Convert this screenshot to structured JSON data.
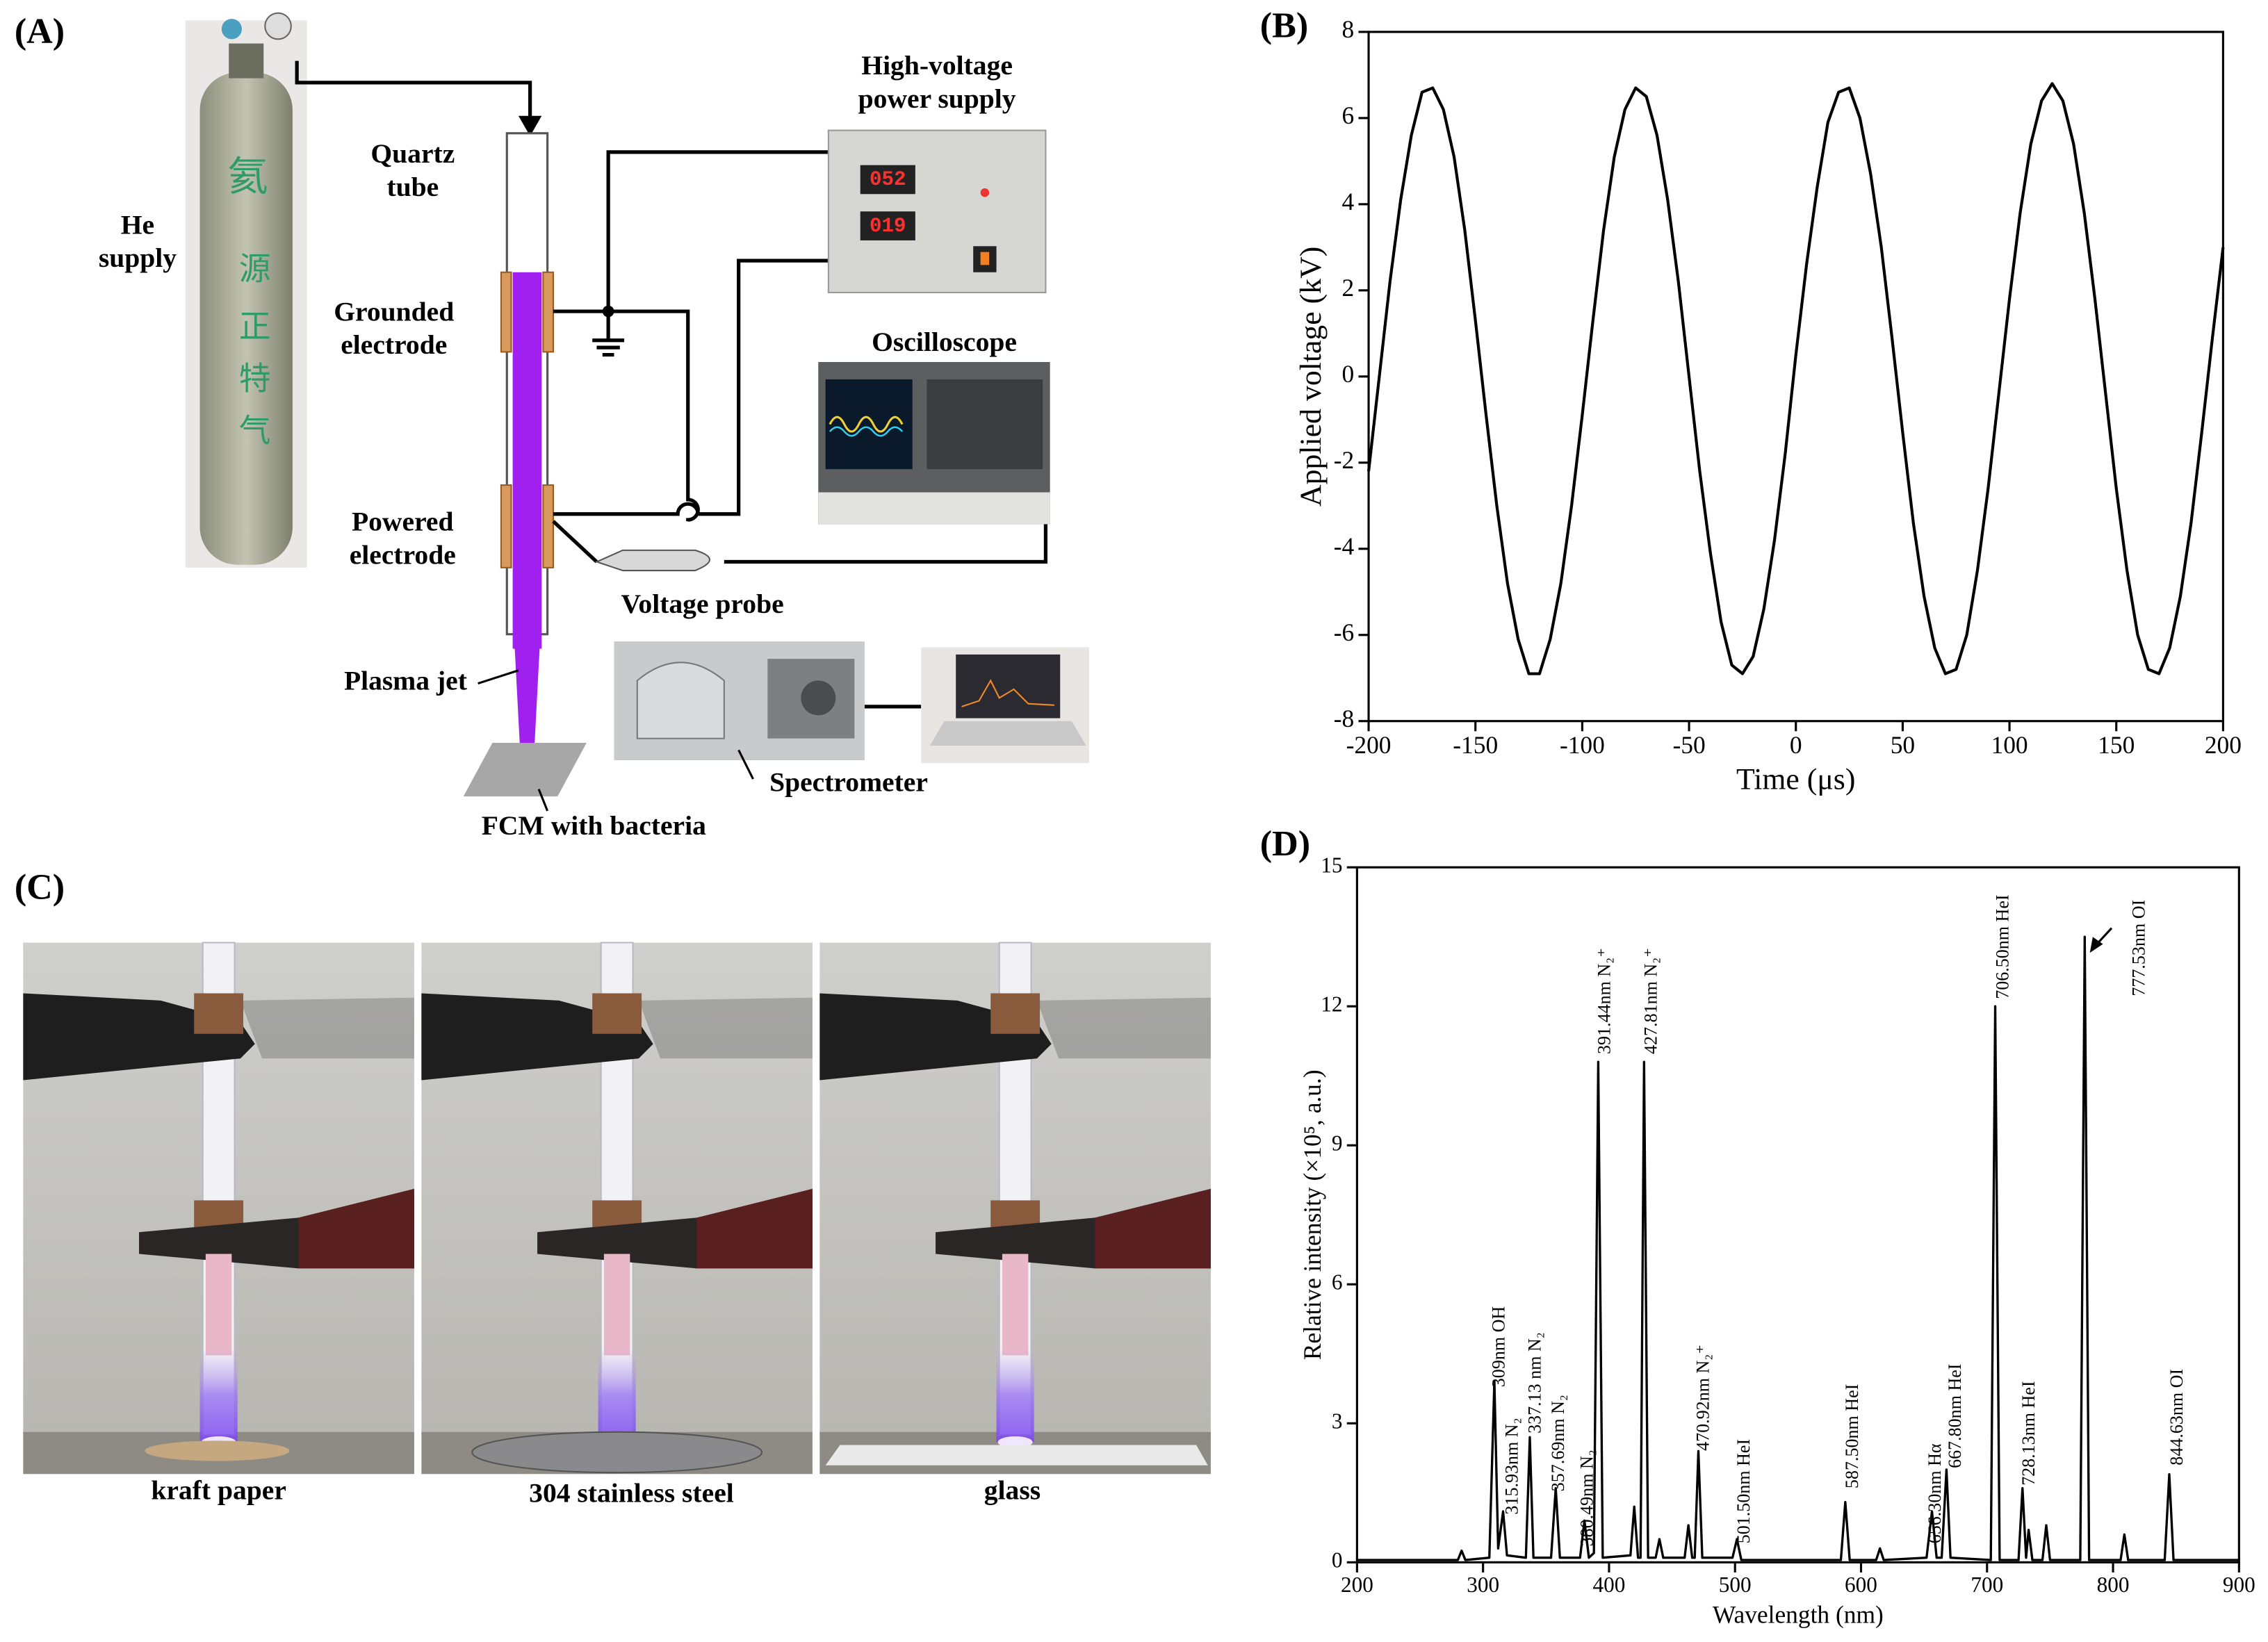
{
  "panel_a": {
    "label": "(A)",
    "he_supply": [
      "He",
      "supply"
    ],
    "cylinder_text": [
      "氦",
      "源",
      "正",
      "特",
      "气"
    ],
    "quartz_tube": [
      "Quartz",
      "tube"
    ],
    "grounded_electrode": [
      "Grounded",
      "electrode"
    ],
    "powered_electrode": [
      "Powered",
      "electrode"
    ],
    "plasma_jet": "Plasma jet",
    "fcm": "FCM with bacteria",
    "power_supply": [
      "High-voltage",
      "power supply"
    ],
    "display_readings": [
      "052",
      "019"
    ],
    "oscilloscope": "Oscilloscope",
    "voltage_probe": "Voltage probe",
    "spectrometer": "Spectrometer"
  },
  "panel_c": {
    "label": "(C)",
    "captions": [
      "kraft paper",
      "304 stainless steel",
      "glass"
    ]
  },
  "chart_data": [
    {
      "type": "line",
      "label": "(B)",
      "x_label": "Time (μs)",
      "y_label": "Applied voltage (kV)",
      "color": "#000000",
      "x": [
        -200,
        -195,
        -190,
        -185,
        -180,
        -175,
        -170,
        -165,
        -160,
        -155,
        -150,
        -145,
        -140,
        -135,
        -130,
        -125,
        -120,
        -115,
        -110,
        -105,
        -100,
        -95,
        -90,
        -85,
        -80,
        -75,
        -70,
        -65,
        -60,
        -55,
        -50,
        -45,
        -40,
        -35,
        -30,
        -25,
        -20,
        -15,
        -10,
        -5,
        0,
        5,
        10,
        15,
        20,
        25,
        30,
        35,
        40,
        45,
        50,
        55,
        60,
        65,
        70,
        75,
        80,
        85,
        90,
        95,
        100,
        105,
        110,
        115,
        120,
        125,
        130,
        135,
        140,
        145,
        150,
        155,
        160,
        165,
        170,
        175,
        180,
        185,
        190,
        195,
        200
      ],
      "values": [
        -2.2,
        0.0,
        2.2,
        4.1,
        5.6,
        6.6,
        6.7,
        6.2,
        5.1,
        3.4,
        1.3,
        -0.9,
        -3.0,
        -4.8,
        -6.1,
        -6.9,
        -6.9,
        -6.1,
        -4.8,
        -3.0,
        -0.9,
        1.3,
        3.4,
        5.1,
        6.2,
        6.7,
        6.5,
        5.6,
        4.1,
        2.2,
        0.0,
        -2.2,
        -4.1,
        -5.7,
        -6.7,
        -6.9,
        -6.5,
        -5.4,
        -3.8,
        -1.8,
        0.5,
        2.6,
        4.4,
        5.9,
        6.6,
        6.7,
        6.0,
        4.7,
        3.0,
        0.9,
        -1.3,
        -3.4,
        -5.1,
        -6.3,
        -6.9,
        -6.8,
        -6.0,
        -4.5,
        -2.6,
        -0.4,
        1.8,
        3.8,
        5.4,
        6.4,
        6.8,
        6.4,
        5.4,
        3.8,
        1.8,
        -0.4,
        -2.6,
        -4.5,
        -6.0,
        -6.8,
        -6.9,
        -6.3,
        -5.1,
        -3.4,
        -1.3,
        0.9,
        3.0
      ],
      "xlim": [
        -200,
        200
      ],
      "xticks": [
        -200,
        -150,
        -100,
        -50,
        0,
        50,
        100,
        150,
        200
      ],
      "ylim": [
        -8,
        8
      ],
      "yticks": [
        -8,
        -6,
        -4,
        -2,
        0,
        2,
        4,
        6,
        8
      ]
    },
    {
      "type": "line",
      "label": "(D)",
      "x_label": "Wavelength (nm)",
      "y_label": "Relative intensity (×10⁵, a.u.)",
      "color": "#000000",
      "x": [
        200,
        280,
        283,
        286,
        305,
        309,
        312,
        315.93,
        319,
        334,
        337.13,
        340,
        354,
        357.69,
        361,
        377,
        380.49,
        384,
        388,
        391.44,
        395,
        417,
        420,
        423,
        425,
        427.81,
        431,
        437,
        440,
        443,
        460,
        463,
        466,
        468,
        470.92,
        474,
        498,
        501.5,
        505,
        584,
        587.5,
        591,
        612,
        615,
        618,
        652,
        656.3,
        660,
        664,
        667.8,
        671,
        703,
        706.5,
        710,
        725,
        728.13,
        731,
        733,
        736,
        744,
        747,
        750,
        774,
        777.53,
        781,
        806,
        809,
        812,
        841,
        844.63,
        848,
        900
      ],
      "values": [
        0.05,
        0.05,
        0.25,
        0.05,
        0.1,
        3.9,
        0.3,
        1.1,
        0.15,
        0.1,
        2.7,
        0.1,
        0.1,
        1.6,
        0.1,
        0.1,
        0.9,
        0.1,
        0.2,
        10.8,
        0.1,
        0.15,
        1.2,
        0.1,
        0.1,
        10.8,
        0.1,
        0.1,
        0.5,
        0.1,
        0.1,
        0.8,
        0.1,
        0.1,
        2.4,
        0.1,
        0.1,
        0.5,
        0.05,
        0.05,
        1.3,
        0.05,
        0.05,
        0.3,
        0.05,
        0.1,
        1.1,
        0.1,
        0.1,
        2.0,
        0.1,
        0.05,
        12.0,
        0.05,
        0.05,
        1.6,
        0.1,
        0.7,
        0.05,
        0.05,
        0.8,
        0.05,
        0.05,
        13.5,
        0.05,
        0.05,
        0.6,
        0.05,
        0.05,
        1.9,
        0.05,
        0.05
      ],
      "xlim": [
        200,
        900
      ],
      "xticks": [
        200,
        300,
        400,
        500,
        600,
        700,
        800,
        900
      ],
      "ylim": [
        0,
        15
      ],
      "yticks": [
        0,
        3,
        6,
        9,
        12,
        15
      ],
      "annotations": [
        "309nm OH",
        "315.93nm N₂",
        "337.13 nm N₂",
        "357.69nm N₂",
        "380.49nm N₂",
        "391.44nm N₂⁺",
        "427.81nm N₂⁺",
        "470.92nm N₂⁺",
        "501.50nm HeI",
        "587.50nm HeI",
        "656.30nm Hα",
        "667.80nm HeI",
        "706.50nm HeI",
        "728.13nm HeI",
        "777.53nm OI",
        "844.63nm OI"
      ]
    }
  ]
}
